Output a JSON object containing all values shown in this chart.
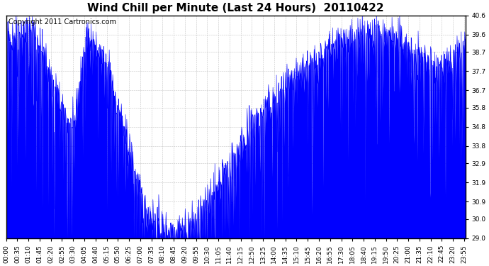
{
  "title": "Wind Chill per Minute (Last 24 Hours)  20110422",
  "copyright_text": "Copyright 2011 Cartronics.com",
  "line_color": "#0000FF",
  "bg_color": "#FFFFFF",
  "plot_bg_color": "#FFFFFF",
  "grid_color": "#AAAAAA",
  "ylim": [
    29.0,
    40.6
  ],
  "yticks": [
    29.0,
    30.0,
    30.9,
    31.9,
    32.9,
    33.8,
    34.8,
    35.8,
    36.7,
    37.7,
    38.7,
    39.6,
    40.6
  ],
  "title_fontsize": 11,
  "copyright_fontsize": 7,
  "tick_fontsize": 6.5,
  "xtick_labels": [
    "00:00",
    "00:35",
    "01:10",
    "01:45",
    "02:20",
    "02:55",
    "03:30",
    "04:05",
    "04:40",
    "05:15",
    "05:50",
    "06:25",
    "07:00",
    "07:35",
    "08:10",
    "08:45",
    "09:20",
    "09:55",
    "10:30",
    "11:05",
    "11:40",
    "12:15",
    "12:50",
    "13:25",
    "14:00",
    "14:35",
    "15:10",
    "15:45",
    "16:20",
    "16:55",
    "17:30",
    "18:05",
    "18:40",
    "19:15",
    "19:50",
    "20:25",
    "21:00",
    "21:35",
    "22:10",
    "22:45",
    "23:20",
    "23:55"
  ]
}
